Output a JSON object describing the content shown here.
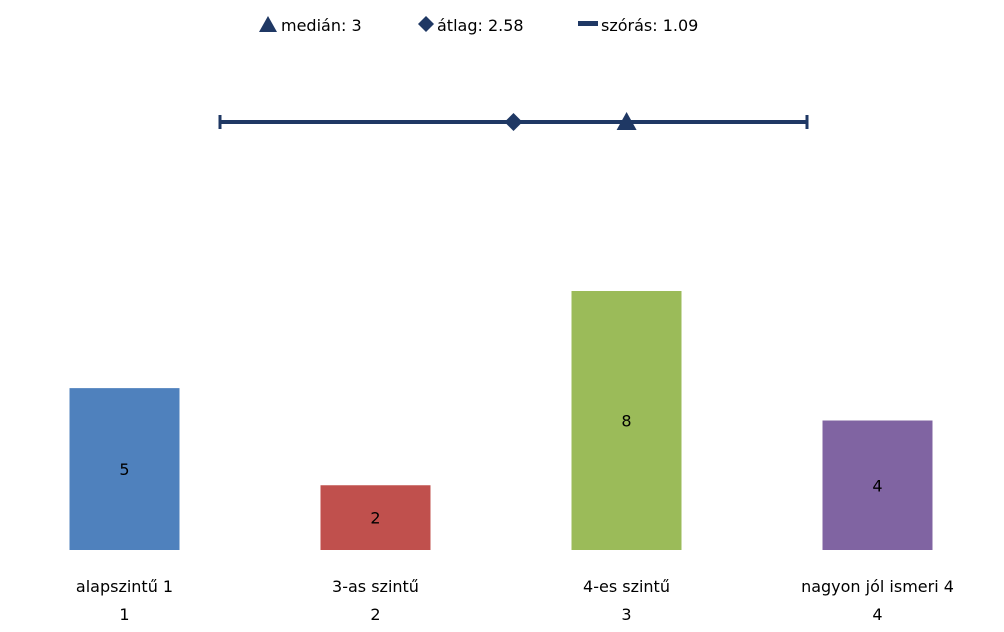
{
  "chart_data": {
    "type": "bar",
    "categories": [
      "alapszintű 1",
      "3-as szintű",
      "4-es szintű",
      "nagyon jól ismeri 4"
    ],
    "category_codes": [
      "1",
      "2",
      "3",
      "4"
    ],
    "values": [
      5,
      2,
      8,
      4
    ],
    "bar_colors": [
      "#4F81BD",
      "#C0504D",
      "#9BBB59",
      "#8064A2"
    ],
    "ylim": [
      0,
      8
    ],
    "grid": false,
    "legend_position": "top",
    "summary": {
      "scale_range": [
        1,
        4
      ],
      "median": 3,
      "mean": 2.58,
      "std": 1.09,
      "color": "#1F3864"
    },
    "legend": [
      {
        "label": "medián: 3",
        "icon": "triangle-icon",
        "color": "#1F3864"
      },
      {
        "label": "átlag: 2.58",
        "icon": "diamond-icon",
        "color": "#1F3864"
      },
      {
        "label": "szórás: 1.09",
        "icon": "dash-icon",
        "color": "#1F3864"
      }
    ]
  }
}
